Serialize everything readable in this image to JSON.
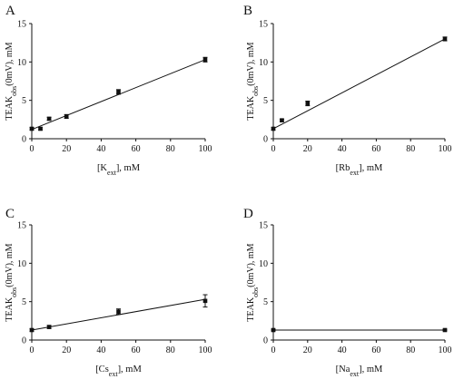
{
  "chart_data": [
    {
      "type": "scatter",
      "panel": "A",
      "xlabel": "[K",
      "xlabel_sub": "ext",
      "xlabel_tail": "], mM",
      "ylabel": "TEAK",
      "ylabel_sub": "obs",
      "ylabel_tail": "(0mV), mM",
      "xlim": [
        0,
        100
      ],
      "ylim": [
        0,
        15
      ],
      "xticks": [
        "0",
        "20",
        "40",
        "60",
        "80",
        "100"
      ],
      "yticks": [
        "0",
        "5",
        "10",
        "15"
      ],
      "x": [
        0,
        5,
        10,
        20,
        50,
        100
      ],
      "y": [
        1.3,
        1.3,
        2.6,
        2.9,
        6.1,
        10.3
      ],
      "err": [
        0.15,
        0.15,
        0.2,
        0.25,
        0.3,
        0.3
      ],
      "fit": {
        "x": [
          0,
          100
        ],
        "y": [
          1.2,
          10.3
        ]
      }
    },
    {
      "type": "scatter",
      "panel": "B",
      "xlabel": "[Rb",
      "xlabel_sub": "ext",
      "xlabel_tail": "], mM",
      "ylabel": "TEAK",
      "ylabel_sub": "obs",
      "ylabel_tail": "(0mV), mM",
      "xlim": [
        0,
        100
      ],
      "ylim": [
        0,
        15
      ],
      "xticks": [
        "0",
        "20",
        "40",
        "60",
        "80",
        "100"
      ],
      "yticks": [
        "0",
        "5",
        "10",
        "15"
      ],
      "x": [
        0,
        5,
        20,
        100
      ],
      "y": [
        1.3,
        2.4,
        4.6,
        13.0
      ],
      "err": [
        0.15,
        0.15,
        0.3,
        0.25
      ],
      "fit": {
        "x": [
          0,
          100
        ],
        "y": [
          1.3,
          13.0
        ]
      }
    },
    {
      "type": "scatter",
      "panel": "C",
      "xlabel": "[Cs",
      "xlabel_sub": "ext",
      "xlabel_tail": "], mM",
      "ylabel": "TEAK",
      "ylabel_sub": "obs",
      "ylabel_tail": "(0mV), mM",
      "xlim": [
        0,
        100
      ],
      "ylim": [
        0,
        15
      ],
      "xticks": [
        "0",
        "20",
        "40",
        "60",
        "80",
        "100"
      ],
      "yticks": [
        "0",
        "5",
        "10",
        "15"
      ],
      "x": [
        0,
        10,
        50,
        100
      ],
      "y": [
        1.3,
        1.7,
        3.7,
        5.1
      ],
      "err": [
        0.15,
        0.2,
        0.35,
        0.8
      ],
      "fit": {
        "x": [
          0,
          100
        ],
        "y": [
          1.3,
          5.3
        ]
      }
    },
    {
      "type": "scatter",
      "panel": "D",
      "xlabel": "[Na",
      "xlabel_sub": "ext",
      "xlabel_tail": "], mM",
      "ylabel": "TEAK",
      "ylabel_sub": "obs",
      "ylabel_tail": "(0mV), mM",
      "xlim": [
        0,
        100
      ],
      "ylim": [
        0,
        15
      ],
      "xticks": [
        "0",
        "20",
        "40",
        "60",
        "80",
        "100"
      ],
      "yticks": [
        "0",
        "5",
        "10",
        "15"
      ],
      "x": [
        0,
        100
      ],
      "y": [
        1.3,
        1.3
      ],
      "err": [
        0.1,
        0.1
      ],
      "fit": {
        "x": [
          0,
          100
        ],
        "y": [
          1.3,
          1.3
        ]
      }
    }
  ]
}
